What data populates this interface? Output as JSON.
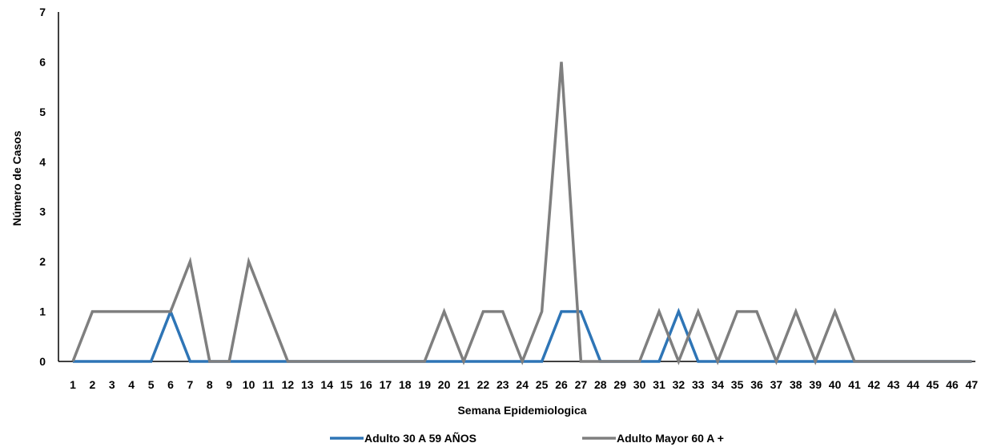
{
  "chart_data": {
    "type": "line",
    "xlabel": "Semana Epidemiologica",
    "ylabel": "Número de Casos",
    "ylim": [
      0,
      7
    ],
    "yticks": [
      0,
      1,
      2,
      3,
      4,
      5,
      6,
      7
    ],
    "grid": false,
    "legend_position": "bottom",
    "categories": [
      "1",
      "2",
      "3",
      "4",
      "5",
      "6",
      "7",
      "8",
      "9",
      "10",
      "11",
      "12",
      "13",
      "14",
      "15",
      "16",
      "17",
      "18",
      "19",
      "20",
      "21",
      "22",
      "23",
      "24",
      "25",
      "26",
      "27",
      "28",
      "29",
      "30",
      "31",
      "32",
      "33",
      "34",
      "35",
      "36",
      "37",
      "38",
      "39",
      "40",
      "41",
      "42",
      "43",
      "44",
      "45",
      "46",
      "47"
    ],
    "series": [
      {
        "name": "Adulto 30 A 59 AÑOS",
        "color": "#2e75b6",
        "values": [
          0,
          0,
          0,
          0,
          0,
          1,
          0,
          0,
          0,
          0,
          0,
          0,
          0,
          0,
          0,
          0,
          0,
          0,
          0,
          0,
          0,
          0,
          0,
          0,
          0,
          1,
          1,
          0,
          0,
          0,
          0,
          1,
          0,
          0,
          0,
          0,
          0,
          0,
          0,
          0,
          0,
          0,
          0,
          0,
          0,
          0,
          0
        ]
      },
      {
        "name": "Adulto Mayor 60 A +",
        "color": "#7f7f7f",
        "values": [
          0,
          1,
          1,
          1,
          1,
          1,
          2,
          0,
          0,
          2,
          1,
          0,
          0,
          0,
          0,
          0,
          0,
          0,
          0,
          1,
          0,
          1,
          1,
          0,
          1,
          6,
          0,
          0,
          0,
          0,
          1,
          0,
          1,
          0,
          1,
          1,
          0,
          1,
          0,
          1,
          0,
          0,
          0,
          0,
          0,
          0,
          0
        ]
      }
    ]
  }
}
